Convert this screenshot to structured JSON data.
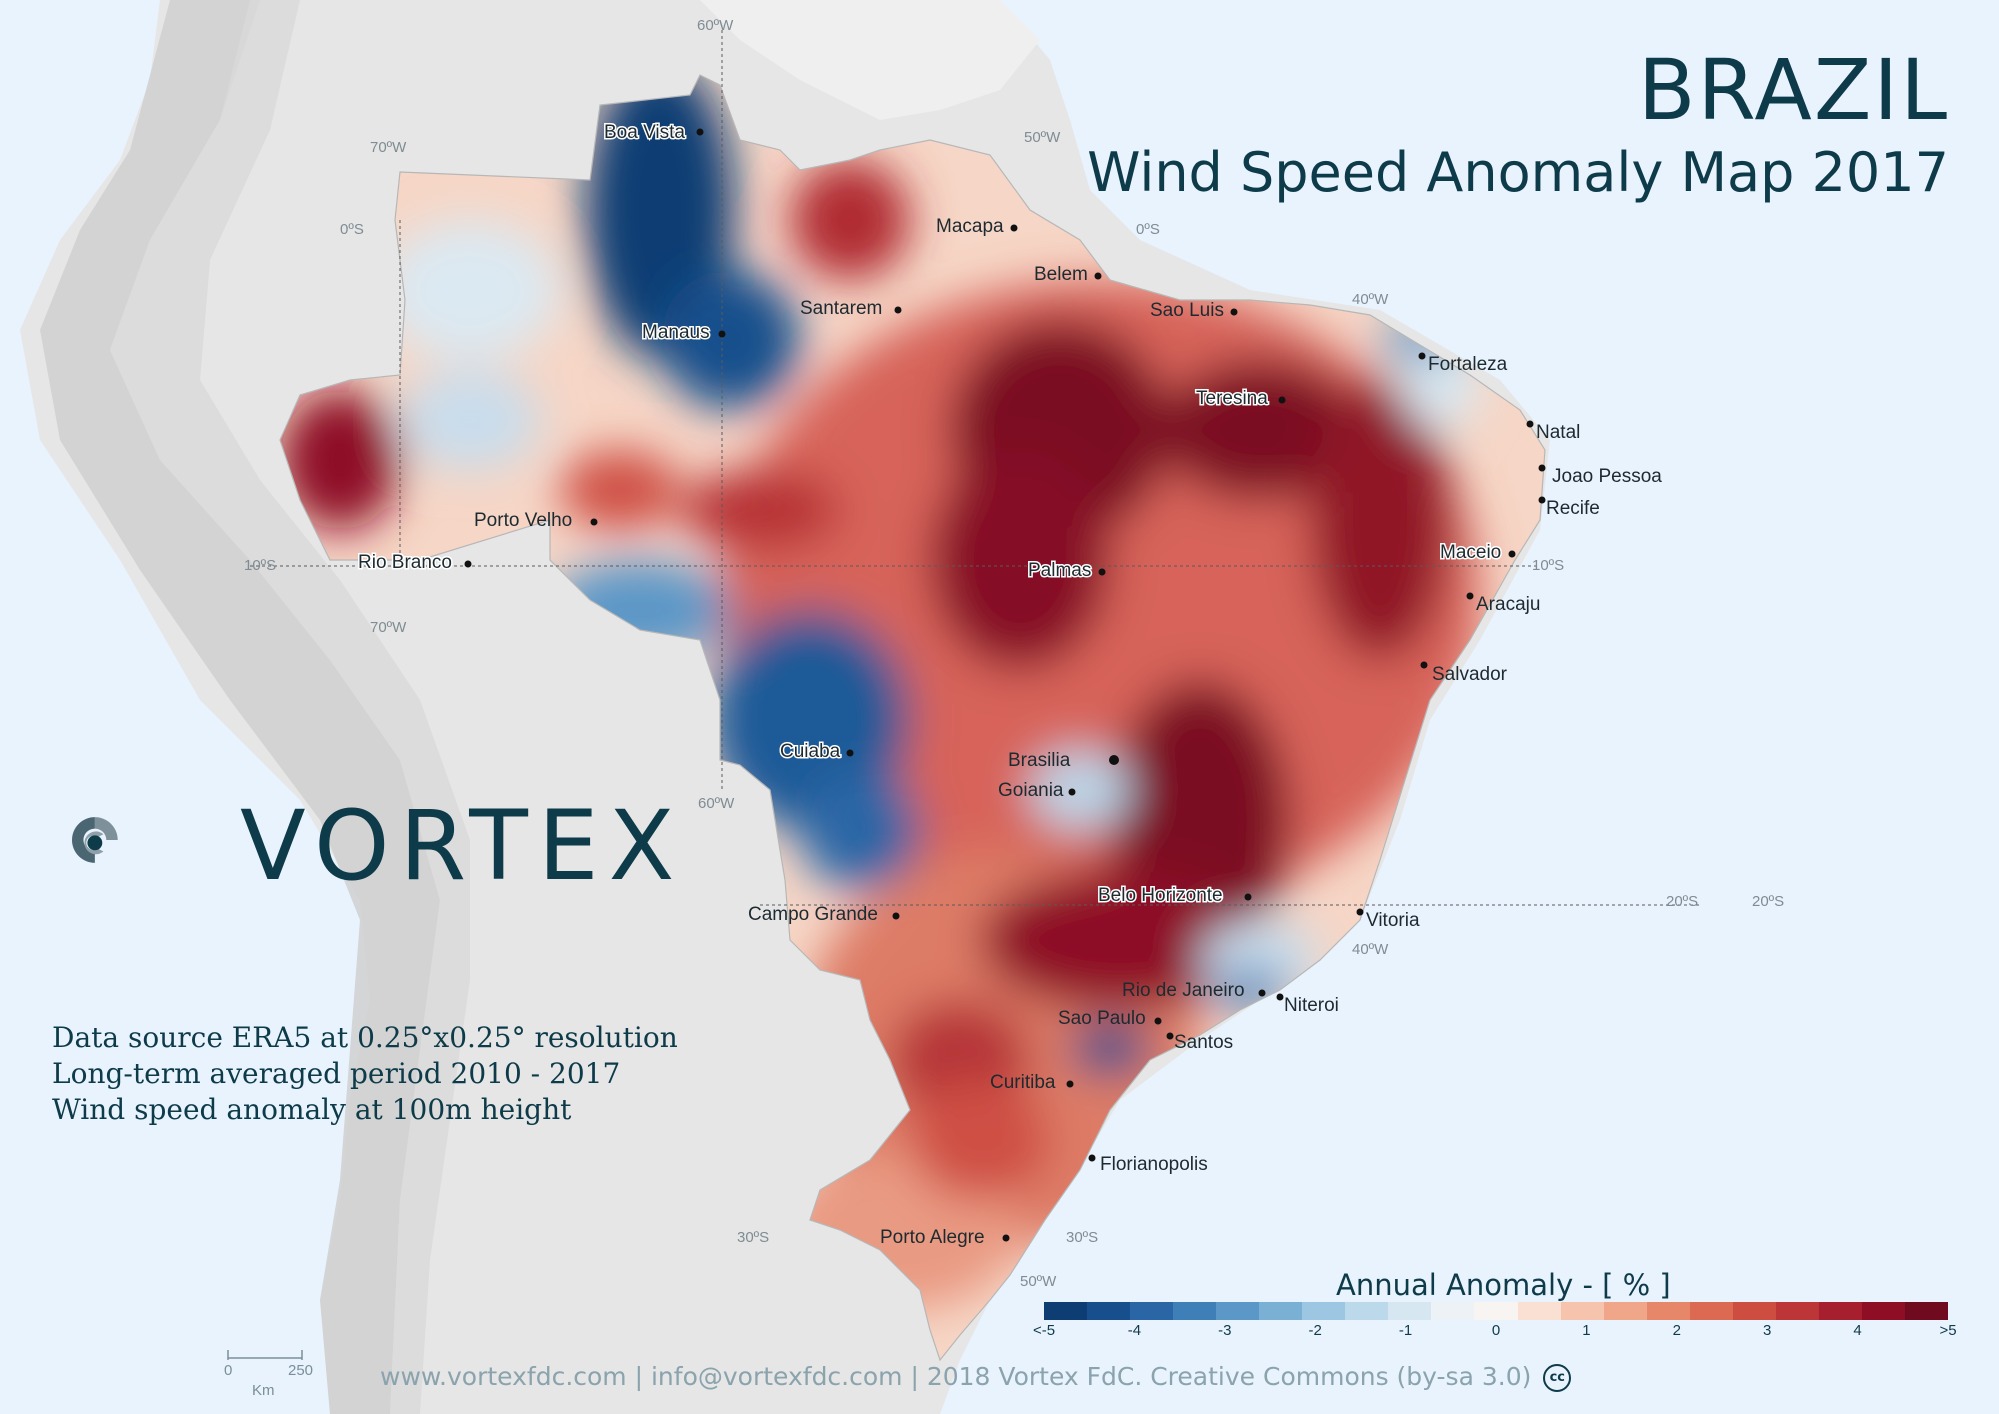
{
  "title": {
    "country": "BRAZIL",
    "subtitle": "Wind Speed Anomaly Map 2017"
  },
  "brand": {
    "name": "VORTEX"
  },
  "source_lines": [
    "Data source ERA5 at 0.25°x0.25°  resolution",
    "Long-term averaged period 2010 - 2017",
    "Wind  speed anomaly at 100m height"
  ],
  "legend": {
    "title": "Annual Anomaly  - [ % ]",
    "ticks": [
      "<-5",
      "-4",
      "-3",
      "-2",
      "-1",
      "0",
      "1",
      "2",
      "3",
      "4",
      ">5"
    ],
    "colors": [
      "#0d3d73",
      "#164f8c",
      "#2a66a6",
      "#3f7fb8",
      "#5b97c7",
      "#7bb0d5",
      "#9cc6e1",
      "#bcd9eb",
      "#d6e7f1",
      "#ecf2f6",
      "#f7f4f2",
      "#fadfd3",
      "#f6c4ad",
      "#f0a688",
      "#e7876a",
      "#dc6a52",
      "#ce4d41",
      "#bc3537",
      "#a61f2f",
      "#8e0e26",
      "#700a1e"
    ]
  },
  "footer": "www.vortexfdc.com | info@vortexfdc.com | 2018 Vortex FdC.  Creative Commons (by-sa 3.0)",
  "scale_bar": {
    "start": "0",
    "end": "250",
    "unit": "Km"
  },
  "grid_labels": [
    "60ºW",
    "70ºW",
    "50ºW",
    "40ºW",
    "0ºS",
    "0ºS",
    "10ºS",
    "10ºS",
    "70ºW",
    "60ºW",
    "20ºS",
    "20ºS",
    "40ºW",
    "30ºS",
    "30ºS",
    "50ºW"
  ],
  "cities": [
    "Boa Vista",
    "Macapa",
    "Belem",
    "Santarem",
    "Manaus",
    "Sao Luis",
    "Fortaleza",
    "Teresina",
    "Natal",
    "Joao Pessoa",
    "Recife",
    "Porto Velho",
    "Maceio",
    "Rio Branco",
    "Palmas",
    "Aracaju",
    "Salvador",
    "Cuiaba",
    "Brasilia",
    "Goiania",
    "Campo Grande",
    "Belo Horizonte",
    "Vitoria",
    "Rio de Janeiro",
    "Niteroi",
    "Sao Paulo",
    "Santos",
    "Curitiba",
    "Florianopolis",
    "Porto Alegre"
  ]
}
